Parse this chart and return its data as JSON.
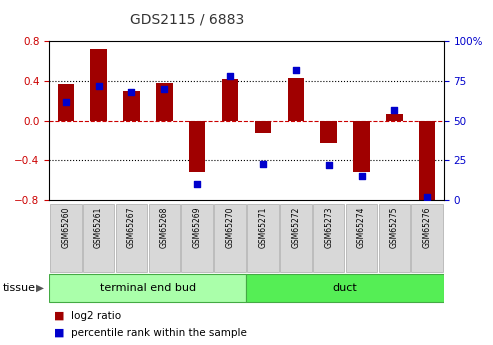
{
  "title": "GDS2115 / 6883",
  "samples": [
    "GSM65260",
    "GSM65261",
    "GSM65267",
    "GSM65268",
    "GSM65269",
    "GSM65270",
    "GSM65271",
    "GSM65272",
    "GSM65273",
    "GSM65274",
    "GSM65275",
    "GSM65276"
  ],
  "log2_ratio": [
    0.37,
    0.72,
    0.3,
    0.38,
    -0.52,
    0.42,
    -0.12,
    0.43,
    -0.22,
    -0.52,
    0.07,
    -0.82
  ],
  "percentile_rank": [
    62,
    72,
    68,
    70,
    10,
    78,
    23,
    82,
    22,
    15,
    57,
    2
  ],
  "bar_color": "#a00000",
  "dot_color": "#0000cc",
  "ylim_left": [
    -0.8,
    0.8
  ],
  "ylim_right": [
    0,
    100
  ],
  "yticks_left": [
    -0.8,
    -0.4,
    0.0,
    0.4,
    0.8
  ],
  "yticks_right": [
    0,
    25,
    50,
    75,
    100
  ],
  "hline_zero_color": "#cc0000",
  "hline_dotted_color": "#000000",
  "groups": [
    {
      "label": "terminal end bud",
      "start": 0,
      "end": 6,
      "color": "#aaffaa"
    },
    {
      "label": "duct",
      "start": 6,
      "end": 12,
      "color": "#55ee55"
    }
  ],
  "tissue_label": "tissue",
  "legend_bar_label": "log2 ratio",
  "legend_dot_label": "percentile rank within the sample",
  "background_color": "#ffffff",
  "bar_width": 0.5,
  "left_color": "#cc0000",
  "right_color": "#0000cc"
}
